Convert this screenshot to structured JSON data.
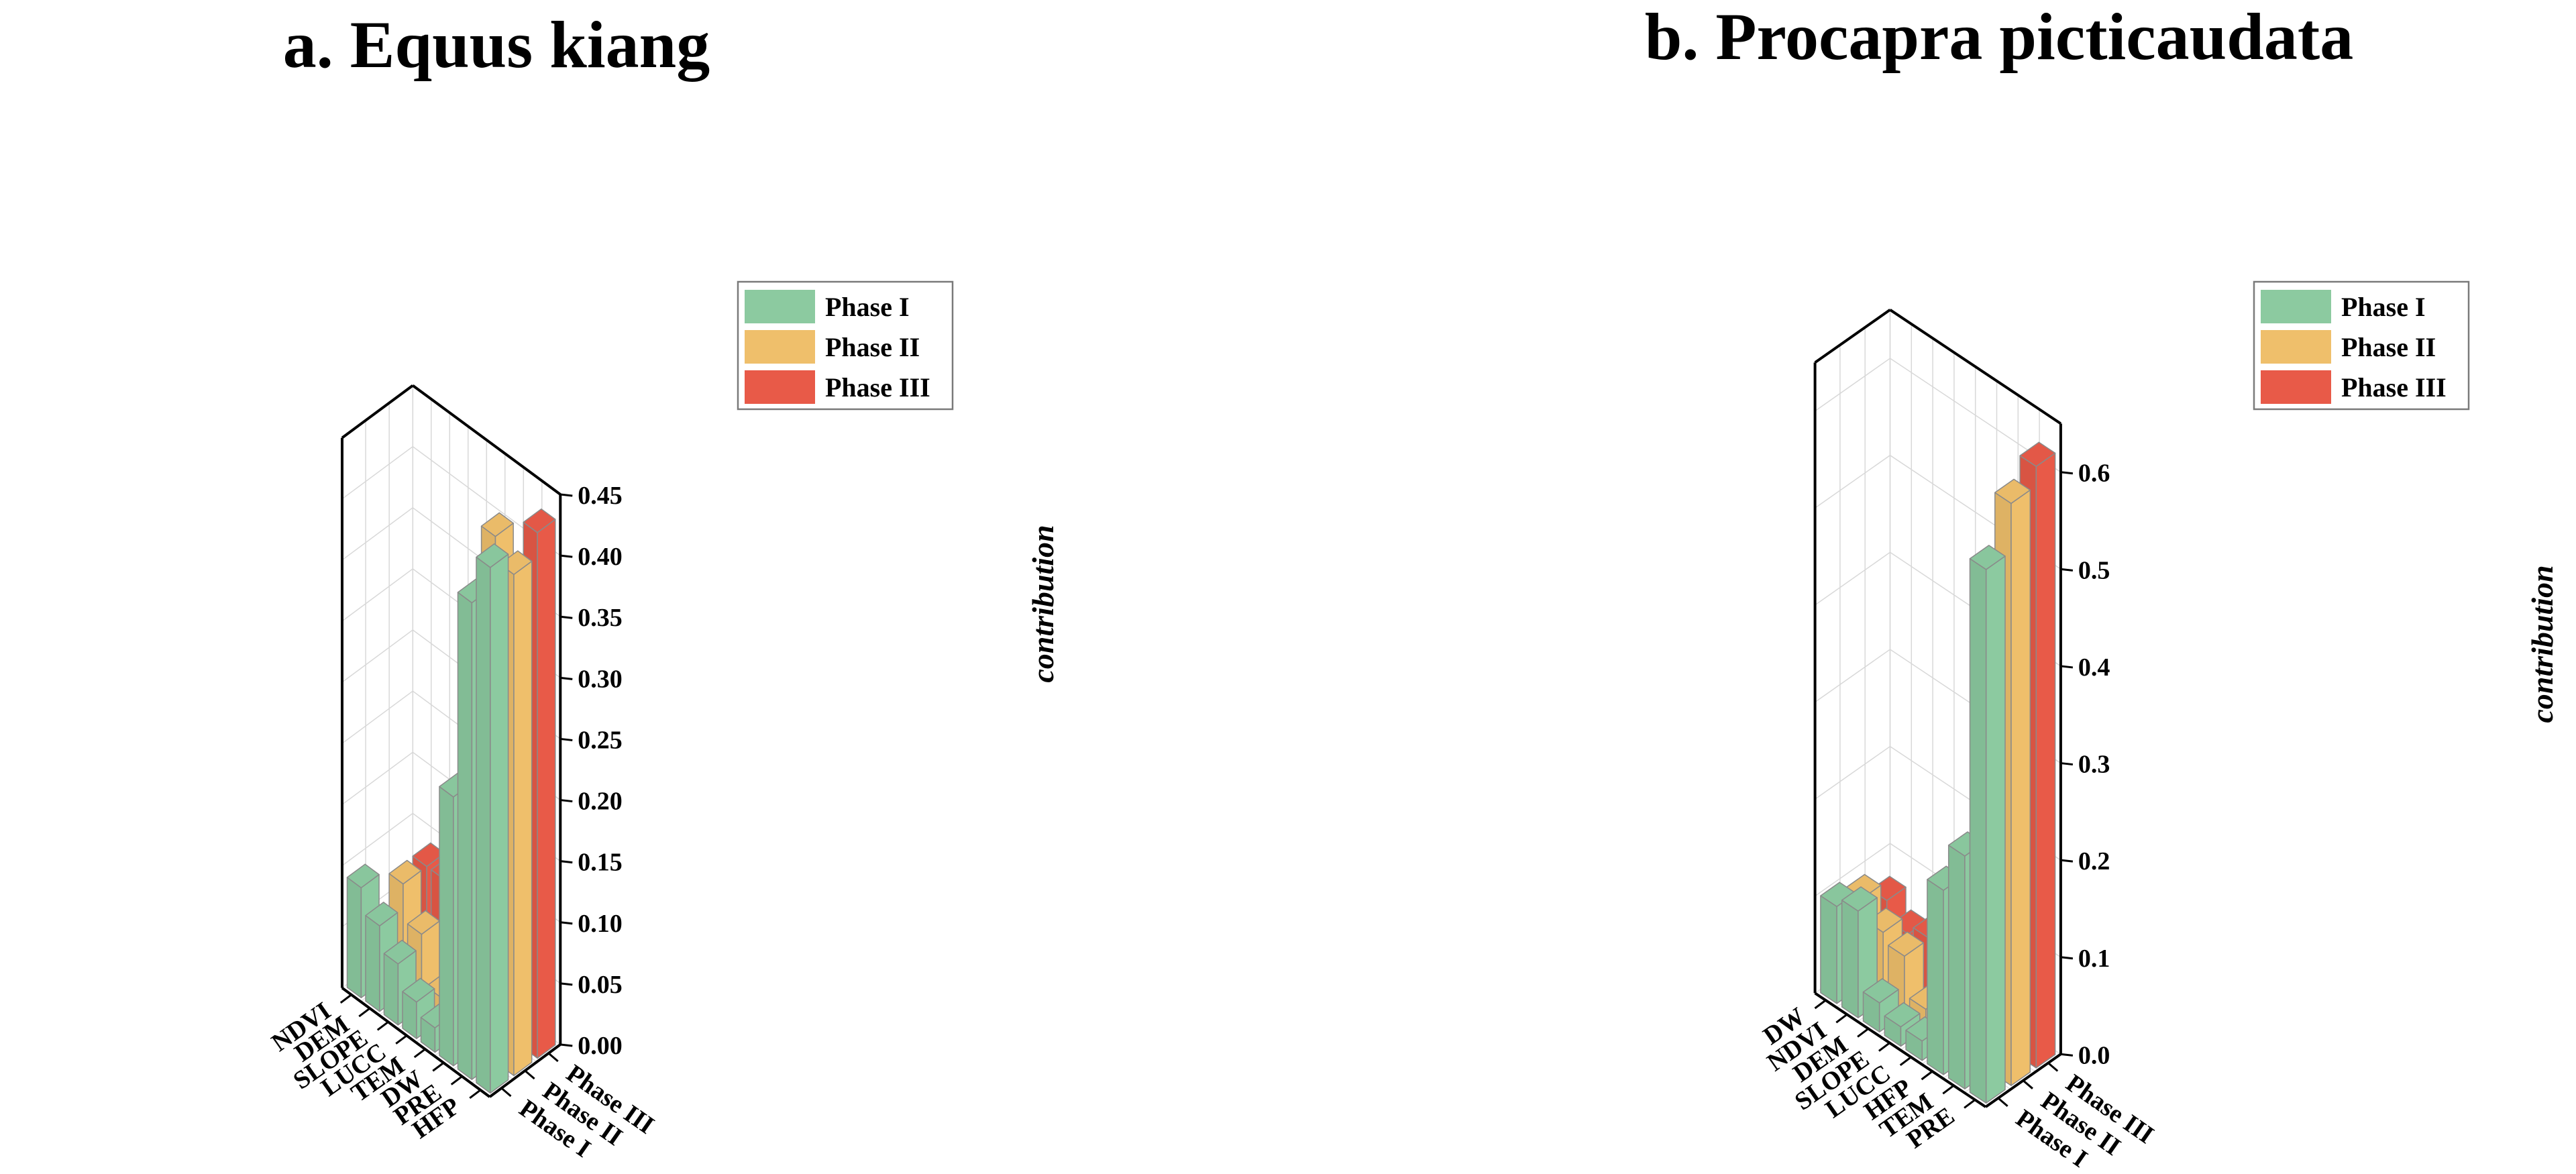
{
  "colors": {
    "phase1": "#8ccaa0",
    "phase2": "#efbf6b",
    "phase3": "#e85a48"
  },
  "chart_data": [
    {
      "type": "bar",
      "title": "a. Equus kiang",
      "categories": [
        "HFP",
        "PRE",
        "DW",
        "TEM",
        "LUCC",
        "SLOPE",
        "DEM",
        "NDVI"
      ],
      "phases": [
        "Phase I",
        "Phase II",
        "Phase III"
      ],
      "series": [
        {
          "name": "Phase I",
          "values": [
            0.43,
            0.39,
            0.22,
            0.02,
            0.03,
            0.05,
            0.07,
            0.09
          ]
        },
        {
          "name": "Phase II",
          "values": [
            0.41,
            0.43,
            0.15,
            0.02,
            0.02,
            0.06,
            0.09,
            0.01
          ]
        },
        {
          "name": "Phase III",
          "values": [
            0.43,
            0.15,
            0.05,
            0.02,
            0.05,
            0.09,
            0.09,
            0.03
          ]
        }
      ],
      "ylabel": "contribution",
      "ylim": [
        0,
        0.45
      ],
      "yticks": [
        "0.00",
        "0.05",
        "0.10",
        "0.15",
        "0.20",
        "0.25",
        "0.30",
        "0.35",
        "0.40",
        "0.45"
      ],
      "legend": [
        "Phase I",
        "Phase II",
        "Phase III"
      ],
      "legend_position": "top-right"
    },
    {
      "type": "bar",
      "title": "b. Procapra picticaudata",
      "categories": [
        "PRE",
        "TEM",
        "HFP",
        "LUCC",
        "SLOPE",
        "DEM",
        "NDVI",
        "DW"
      ],
      "phases": [
        "Phase I",
        "Phase II",
        "Phase III"
      ],
      "series": [
        {
          "name": "Phase I",
          "values": [
            0.55,
            0.24,
            0.19,
            0.02,
            0.02,
            0.03,
            0.11,
            0.1
          ]
        },
        {
          "name": "Phase II",
          "values": [
            0.6,
            0.29,
            0.13,
            0.02,
            0.02,
            0.06,
            0.07,
            0.09
          ]
        },
        {
          "name": "Phase III",
          "values": [
            0.62,
            0.22,
            0.02,
            0.02,
            0.11,
            0.06,
            0.05,
            0.07
          ]
        }
      ],
      "ylabel": "contribution",
      "ylim": [
        0,
        0.65
      ],
      "yticks": [
        "0.0",
        "0.1",
        "0.2",
        "0.3",
        "0.4",
        "0.5",
        "0.6"
      ],
      "legend": [
        "Phase I",
        "Phase II",
        "Phase III"
      ],
      "legend_position": "top-right"
    }
  ]
}
